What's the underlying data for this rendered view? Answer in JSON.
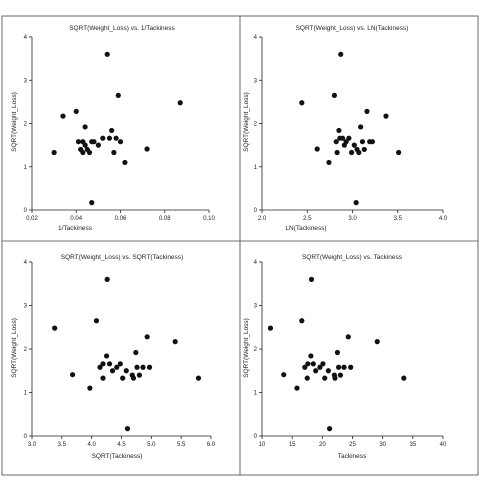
{
  "chart_data": [
    {
      "type": "scatter",
      "title": "SQRT(Weight_Loss) vs. 1/Tackiness",
      "xlabel": "1/Tackiness",
      "ylabel": "SQRT(Weight_Loss)",
      "xlim": [
        0.02,
        0.1
      ],
      "ylim": [
        0,
        4
      ],
      "xticks": [
        "0.02",
        "0.04",
        "0.06",
        "0.08",
        "0.10"
      ],
      "yticks": [
        "0",
        "1",
        "2",
        "3",
        "4"
      ],
      "x": [
        0.03,
        0.034,
        0.04,
        0.041,
        0.042,
        0.043,
        0.043,
        0.044,
        0.045,
        0.046,
        0.047,
        0.048,
        0.05,
        0.052,
        0.054,
        0.055,
        0.056,
        0.057,
        0.058,
        0.059,
        0.06,
        0.062,
        0.072,
        0.087,
        0.044,
        0.047
      ],
      "y": [
        1.33,
        2.17,
        2.28,
        1.58,
        1.4,
        1.58,
        1.33,
        1.92,
        1.4,
        1.33,
        0.17,
        1.58,
        1.5,
        1.66,
        3.6,
        1.66,
        1.84,
        1.33,
        1.66,
        2.65,
        1.58,
        1.1,
        1.41,
        2.48,
        1.5,
        1.58
      ]
    },
    {
      "type": "scatter",
      "title": "SQRT(Weight_Loss) vs. LN(Tackiness)",
      "xlabel": "LN(Tackiness)",
      "ylabel": "SQRT(Weight_Loss)",
      "xlim": [
        2,
        4
      ],
      "ylim": [
        0,
        4
      ],
      "xticks": [
        "2.0",
        "2.5",
        "3.0",
        "3.5",
        "4.0"
      ],
      "yticks": [
        "0",
        "1",
        "2",
        "3",
        "4"
      ],
      "x": [
        2.44,
        2.61,
        2.74,
        2.8,
        2.82,
        2.83,
        2.85,
        2.86,
        2.87,
        2.89,
        2.91,
        2.93,
        2.96,
        2.99,
        3.02,
        3.04,
        3.05,
        3.07,
        3.09,
        3.11,
        3.13,
        3.16,
        3.19,
        3.22,
        3.37,
        3.51
      ],
      "y": [
        2.48,
        1.41,
        1.1,
        2.65,
        1.58,
        1.33,
        1.84,
        1.66,
        3.6,
        1.66,
        1.5,
        1.58,
        1.66,
        1.33,
        1.5,
        0.17,
        1.4,
        1.33,
        1.92,
        1.58,
        1.4,
        2.28,
        1.58,
        1.58,
        2.17,
        1.33
      ]
    },
    {
      "type": "scatter",
      "title": "SQRT(Weight_Loss) vs. SQRT(Tackiness)",
      "xlabel": "SQRT(Tackiness)",
      "ylabel": "SQRT(Weight_Loss)",
      "xlim": [
        3.0,
        6.0
      ],
      "ylim": [
        0,
        4
      ],
      "xticks": [
        "3.0",
        "3.5",
        "4.0",
        "4.5",
        "5.0",
        "5.5",
        "6.0"
      ],
      "yticks": [
        "0",
        "1",
        "2",
        "3",
        "4"
      ],
      "x": [
        3.38,
        3.68,
        3.97,
        4.08,
        4.14,
        4.19,
        4.19,
        4.25,
        4.26,
        4.3,
        4.35,
        4.42,
        4.48,
        4.52,
        4.58,
        4.6,
        4.68,
        4.7,
        4.74,
        4.76,
        4.8,
        4.86,
        4.93,
        4.97,
        5.4,
        5.79
      ],
      "y": [
        2.48,
        1.41,
        1.1,
        2.65,
        1.58,
        1.33,
        1.66,
        1.84,
        3.6,
        1.66,
        1.5,
        1.58,
        1.66,
        1.33,
        1.5,
        0.17,
        1.4,
        1.33,
        1.92,
        1.58,
        1.4,
        1.58,
        2.28,
        1.58,
        2.17,
        1.33
      ]
    },
    {
      "type": "scatter",
      "title": "SQRT(Weight_Loss) vs. Tackiness",
      "xlabel": "Tackiness",
      "ylabel": "SQRT(Weight_Loss)",
      "xlim": [
        10,
        40
      ],
      "ylim": [
        0,
        4
      ],
      "xticks": [
        "10",
        "15",
        "20",
        "25",
        "30",
        "35",
        "40"
      ],
      "yticks": [
        "0",
        "1",
        "2",
        "3",
        "4"
      ],
      "x": [
        11.4,
        13.6,
        15.8,
        16.6,
        17.1,
        17.5,
        17.6,
        18.1,
        18.2,
        18.5,
        18.9,
        19.6,
        20.1,
        20.4,
        21.0,
        21.2,
        22.0,
        22.1,
        22.5,
        22.7,
        23.0,
        23.6,
        24.3,
        24.7,
        29.1,
        33.5
      ],
      "y": [
        2.48,
        1.41,
        1.1,
        2.65,
        1.58,
        1.33,
        1.66,
        1.84,
        3.6,
        1.66,
        1.5,
        1.58,
        1.66,
        1.33,
        1.5,
        0.17,
        1.4,
        1.33,
        1.92,
        1.58,
        1.4,
        1.58,
        2.28,
        1.58,
        2.17,
        1.33
      ]
    }
  ]
}
